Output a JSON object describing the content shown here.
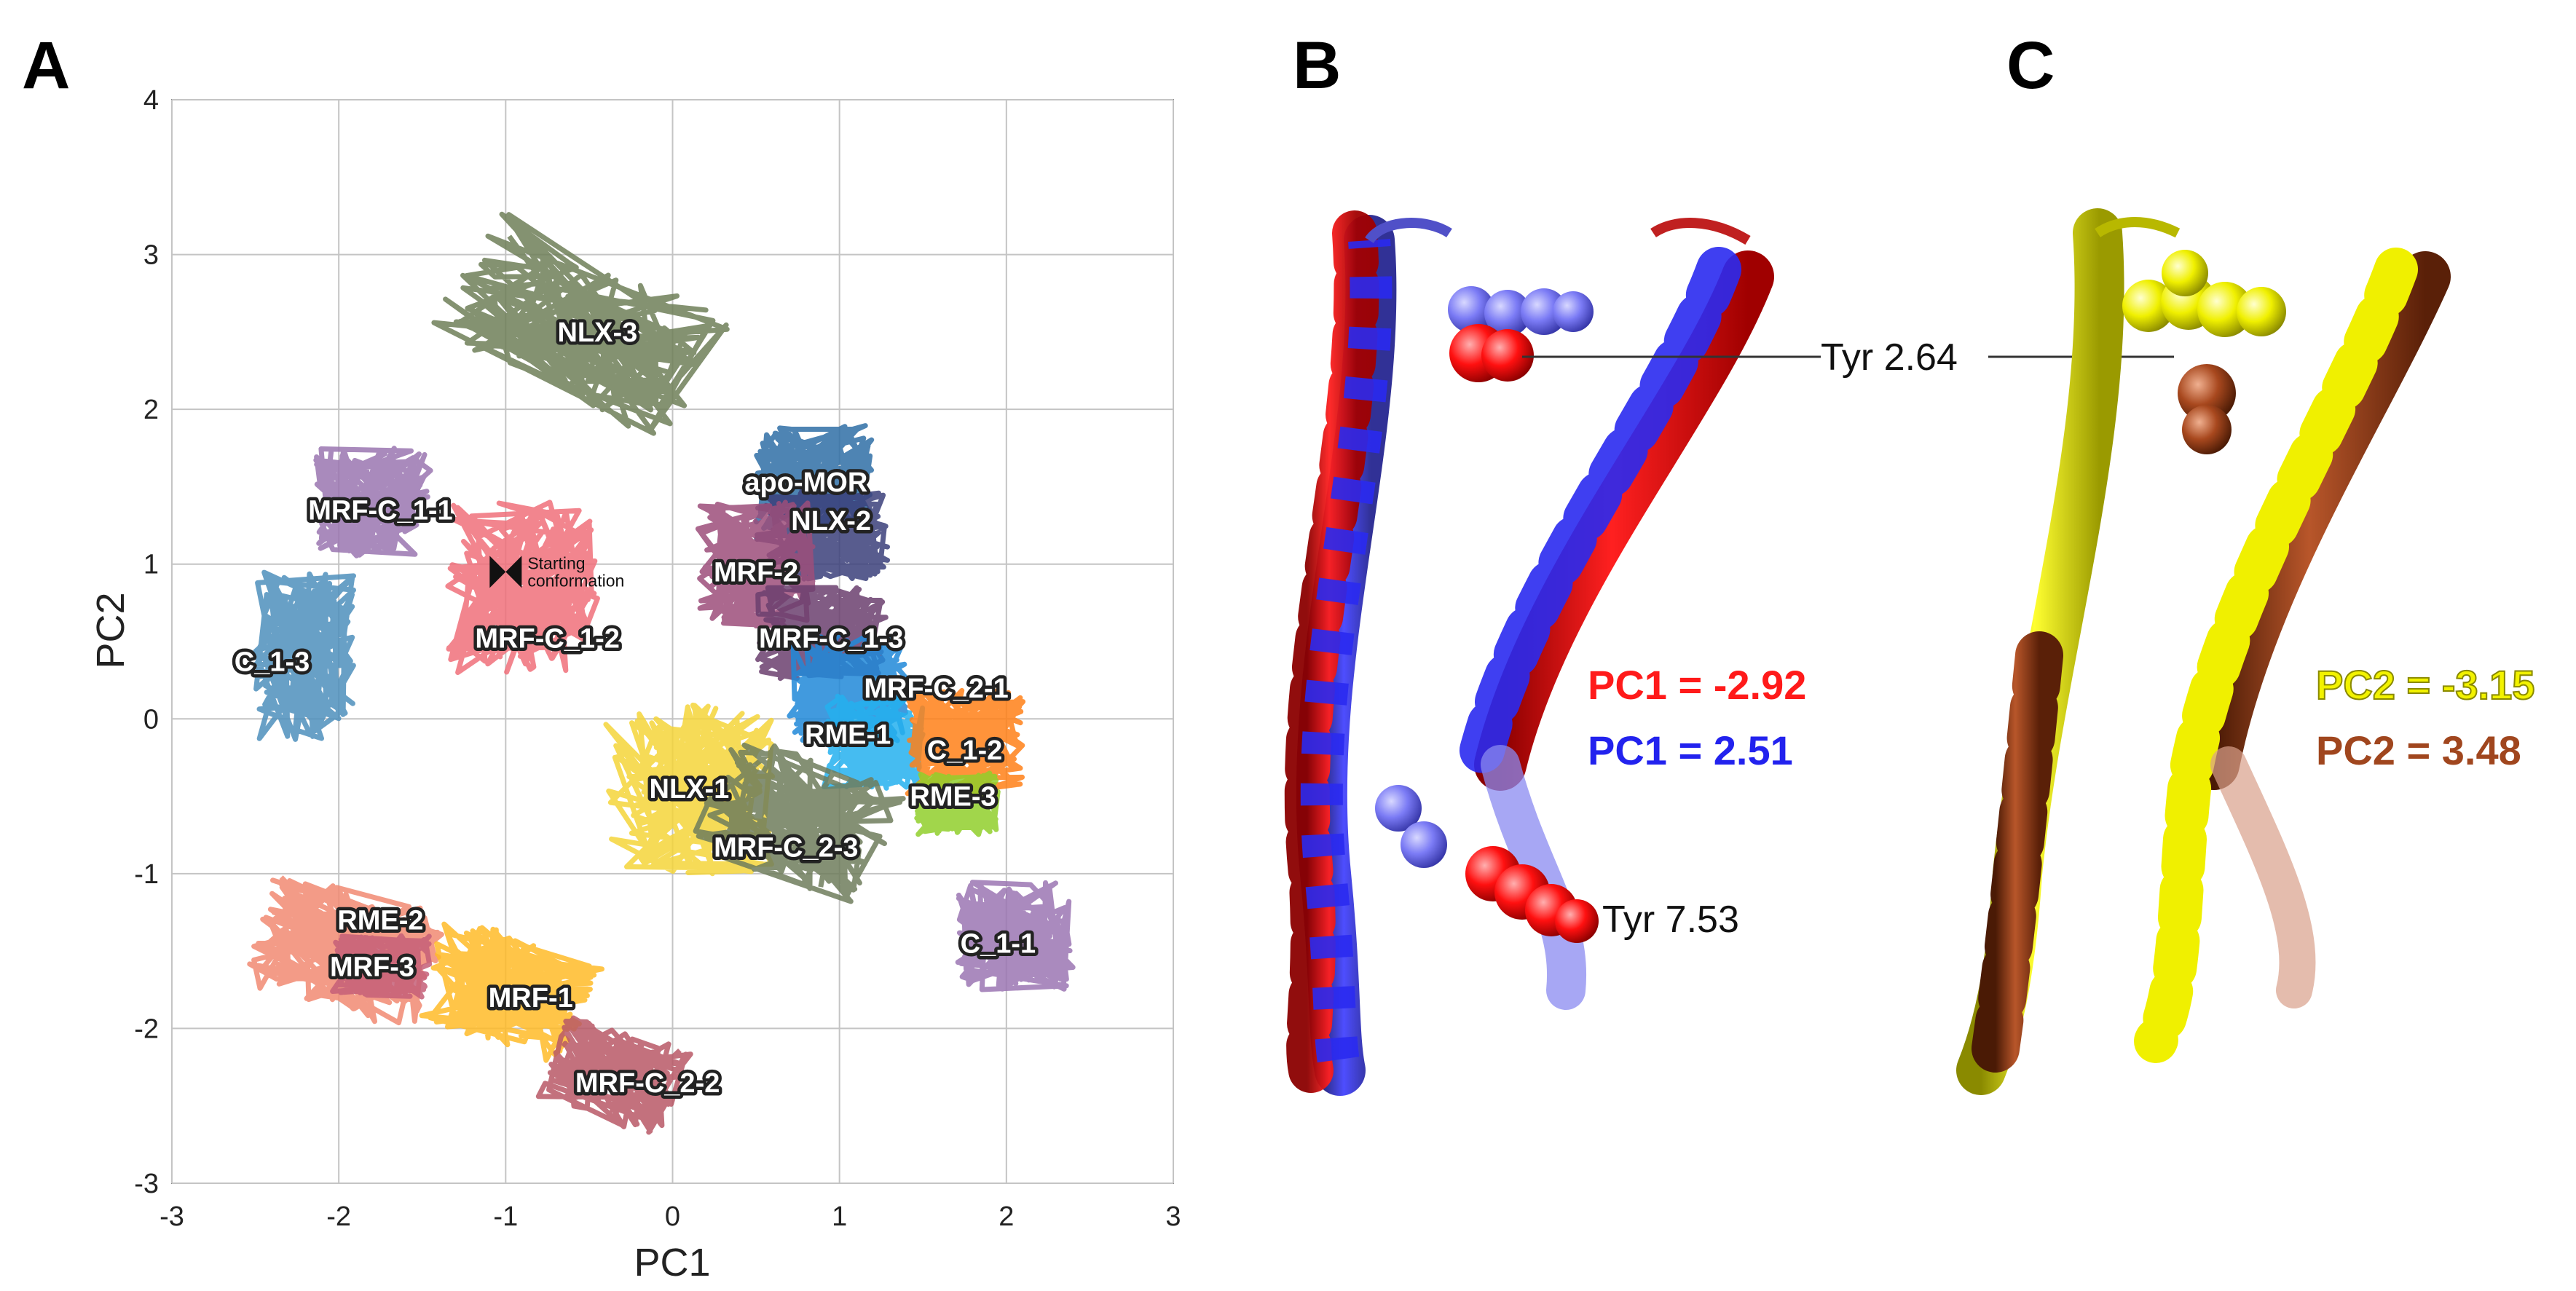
{
  "panels": {
    "a": "A",
    "b": "B",
    "c": "C"
  },
  "chart_data": {
    "type": "scatter",
    "xlabel": "PC1",
    "ylabel": "PC2",
    "xlim": [
      -3,
      3
    ],
    "ylim": [
      -3,
      4
    ],
    "xticks": [
      "-3",
      "-2",
      "-1",
      "0",
      "1",
      "2",
      "3"
    ],
    "yticks": [
      "-3",
      "-2",
      "-1",
      "0",
      "1",
      "2",
      "3",
      "4"
    ],
    "grid": true,
    "start_point": {
      "x": -1.0,
      "y": 0.95,
      "label_line1": "Starting",
      "label_line2": "conformation"
    },
    "clusters": [
      {
        "label": "NLX-3",
        "color": "#6f7f58",
        "cx": -0.55,
        "cy": 2.55,
        "sx": 0.8,
        "sy": 0.45,
        "tilt": -28,
        "lx": -0.45,
        "ly": 2.5
      },
      {
        "label": "apo-MOR",
        "color": "#2f6ea6",
        "cx": 0.85,
        "cy": 1.55,
        "sx": 0.35,
        "sy": 0.35,
        "tilt": 0,
        "lx": 0.8,
        "ly": 1.53
      },
      {
        "label": "NLX-2",
        "color": "#3b3f7a",
        "cx": 0.9,
        "cy": 1.2,
        "sx": 0.4,
        "sy": 0.3,
        "tilt": 0,
        "lx": 0.95,
        "ly": 1.28
      },
      {
        "label": "MRF-2",
        "color": "#9c4e7a",
        "cx": 0.5,
        "cy": 1.0,
        "sx": 0.35,
        "sy": 0.4,
        "tilt": 0,
        "lx": 0.5,
        "ly": 0.95
      },
      {
        "label": "MRF-C_1-1",
        "color": "#9a76b0",
        "cx": -1.8,
        "cy": 1.4,
        "sx": 0.35,
        "sy": 0.35,
        "tilt": 0,
        "lx": -1.75,
        "ly": 1.35
      },
      {
        "label": "MRF-C_1-2",
        "color": "#f0707a",
        "cx": -0.9,
        "cy": 0.85,
        "sx": 0.45,
        "sy": 0.55,
        "tilt": 0,
        "lx": -0.75,
        "ly": 0.52
      },
      {
        "label": "C_1-3",
        "color": "#4e8fbc",
        "cx": -2.2,
        "cy": 0.4,
        "sx": 0.3,
        "sy": 0.55,
        "tilt": 0,
        "lx": -2.4,
        "ly": 0.37
      },
      {
        "label": "MRF-C_1-3",
        "color": "#6b3f6e",
        "cx": 0.9,
        "cy": 0.55,
        "sx": 0.4,
        "sy": 0.3,
        "tilt": 0,
        "lx": 0.95,
        "ly": 0.52
      },
      {
        "label": "MRF-C_2-1",
        "color": "#2088d8",
        "cx": 1.05,
        "cy": 0.2,
        "sx": 0.35,
        "sy": 0.35,
        "tilt": 0,
        "lx": 1.58,
        "ly": 0.2
      },
      {
        "label": "RME-1",
        "color": "#25b0ef",
        "cx": 1.2,
        "cy": -0.15,
        "sx": 0.3,
        "sy": 0.3,
        "tilt": 0,
        "lx": 1.05,
        "ly": -0.1
      },
      {
        "label": "C_1-2",
        "color": "#ff8017",
        "cx": 1.75,
        "cy": -0.15,
        "sx": 0.35,
        "sy": 0.35,
        "tilt": 0,
        "lx": 1.75,
        "ly": -0.2
      },
      {
        "label": "RME-3",
        "color": "#90cf2c",
        "cx": 1.7,
        "cy": -0.55,
        "sx": 0.25,
        "sy": 0.2,
        "tilt": 0,
        "lx": 1.68,
        "ly": -0.5
      },
      {
        "label": "NLX-1",
        "color": "#f5d53a",
        "cx": 0.1,
        "cy": -0.45,
        "sx": 0.5,
        "sy": 0.55,
        "tilt": 0,
        "lx": 0.1,
        "ly": -0.45
      },
      {
        "label": "MRF-C_2-3",
        "color": "#6e7d5c",
        "cx": 0.75,
        "cy": -0.65,
        "sx": 0.55,
        "sy": 0.4,
        "tilt": -20,
        "lx": 0.68,
        "ly": -0.83
      },
      {
        "label": "C_1-1",
        "color": "#9b76b3",
        "cx": 2.05,
        "cy": -1.4,
        "sx": 0.35,
        "sy": 0.35,
        "tilt": 0,
        "lx": 1.95,
        "ly": -1.45
      },
      {
        "label": "RME-2",
        "color": "#f18a72",
        "cx": -1.95,
        "cy": -1.5,
        "sx": 0.55,
        "sy": 0.4,
        "tilt": -15,
        "lx": -1.75,
        "ly": -1.3
      },
      {
        "label": "MRF-3",
        "color": "#c45f78",
        "cx": -1.75,
        "cy": -1.6,
        "sx": 0.3,
        "sy": 0.2,
        "tilt": 0,
        "lx": -1.8,
        "ly": -1.6
      },
      {
        "label": "MRF-1",
        "color": "#ffbb28",
        "cx": -1.0,
        "cy": -1.75,
        "sx": 0.5,
        "sy": 0.35,
        "tilt": -20,
        "lx": -0.85,
        "ly": -1.8
      },
      {
        "label": "MRF-C_2-2",
        "color": "#b95866",
        "cx": -0.35,
        "cy": -2.3,
        "sx": 0.4,
        "sy": 0.3,
        "tilt": -20,
        "lx": -0.15,
        "ly": -2.35
      }
    ]
  },
  "panel_b": {
    "tyr_top": "Tyr 2.64",
    "tyr_bottom": "Tyr 7.53",
    "pc_red": "PC1 = -2.92",
    "pc_blue": "PC1 = 2.51",
    "color_red": "#ff1a1a",
    "color_blue": "#2222ee"
  },
  "panel_c": {
    "pc_yellow": "PC2 = -3.15",
    "pc_brown": "PC2 = 3.48",
    "color_yellow": "#f2f200",
    "color_brown": "#a0461e"
  }
}
